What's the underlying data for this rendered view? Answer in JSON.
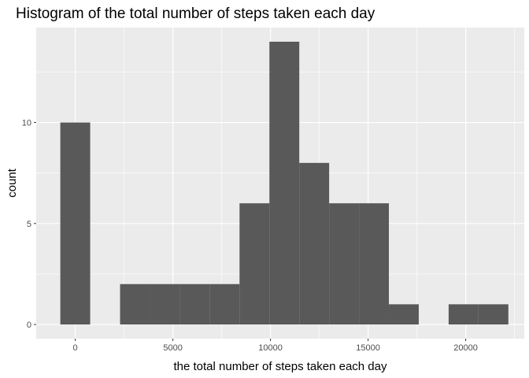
{
  "chart_data": {
    "type": "bar",
    "title": "Histogram of the total number of steps taken each day",
    "xlabel": "the total number of steps taken each day",
    "ylabel": "count",
    "xlim": [
      -2000,
      23000
    ],
    "ylim": [
      -0.7,
      14.7
    ],
    "x_ticks": [
      0,
      5000,
      10000,
      15000,
      20000
    ],
    "x_tick_labels": [
      "0",
      "5000",
      "10000",
      "15000",
      "20000"
    ],
    "y_ticks": [
      0,
      5,
      10
    ],
    "y_tick_labels": [
      "0",
      "5",
      "10"
    ],
    "grid": true,
    "bin_width": 1530,
    "bins": [
      {
        "x0": -765,
        "x1": 765,
        "count": 10
      },
      {
        "x0": 765,
        "x1": 2295,
        "count": 0
      },
      {
        "x0": 2295,
        "x1": 3825,
        "count": 2
      },
      {
        "x0": 3825,
        "x1": 5355,
        "count": 2
      },
      {
        "x0": 5355,
        "x1": 6885,
        "count": 2
      },
      {
        "x0": 6885,
        "x1": 8415,
        "count": 2
      },
      {
        "x0": 8415,
        "x1": 9945,
        "count": 6
      },
      {
        "x0": 9945,
        "x1": 11475,
        "count": 14
      },
      {
        "x0": 11475,
        "x1": 13005,
        "count": 8
      },
      {
        "x0": 13005,
        "x1": 14535,
        "count": 6
      },
      {
        "x0": 14535,
        "x1": 16065,
        "count": 6
      },
      {
        "x0": 16065,
        "x1": 17595,
        "count": 1
      },
      {
        "x0": 17595,
        "x1": 19125,
        "count": 0
      },
      {
        "x0": 19125,
        "x1": 20655,
        "count": 1
      },
      {
        "x0": 20655,
        "x1": 22185,
        "count": 1
      }
    ],
    "colors": {
      "panel": "#ebebeb",
      "grid_major": "#ffffff",
      "bar": "#595959",
      "tick": "#333333"
    }
  }
}
